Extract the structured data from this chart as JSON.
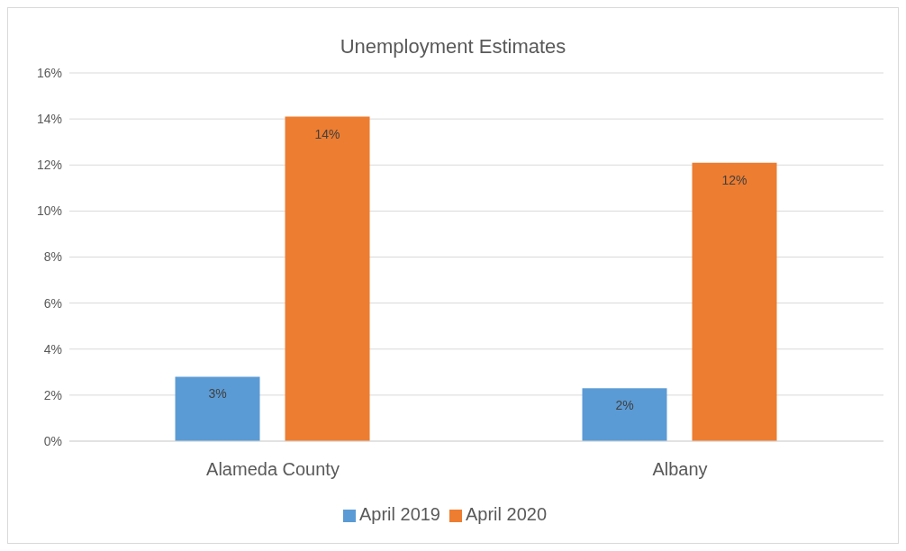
{
  "chart_data": {
    "type": "bar",
    "title": "Unemployment Estimates",
    "categories": [
      "Alameda County",
      "Albany"
    ],
    "series": [
      {
        "name": "April 2019",
        "color": "#5b9bd5",
        "values": [
          2.8,
          2.3
        ],
        "value_labels": [
          "3%",
          "2%"
        ]
      },
      {
        "name": "April 2020",
        "color": "#ed7d31",
        "values": [
          14.1,
          12.1
        ],
        "value_labels": [
          "14%",
          "12%"
        ]
      }
    ],
    "ylim": [
      0,
      16
    ],
    "yticks": [
      {
        "value": 0,
        "label": "0%"
      },
      {
        "value": 2,
        "label": "2%"
      },
      {
        "value": 4,
        "label": "4%"
      },
      {
        "value": 6,
        "label": "6%"
      },
      {
        "value": 8,
        "label": "8%"
      },
      {
        "value": 10,
        "label": "10%"
      },
      {
        "value": 12,
        "label": "12%"
      },
      {
        "value": 14,
        "label": "14%"
      },
      {
        "value": 16,
        "label": "16%"
      }
    ],
    "grid": "y",
    "legend": "bottom"
  }
}
